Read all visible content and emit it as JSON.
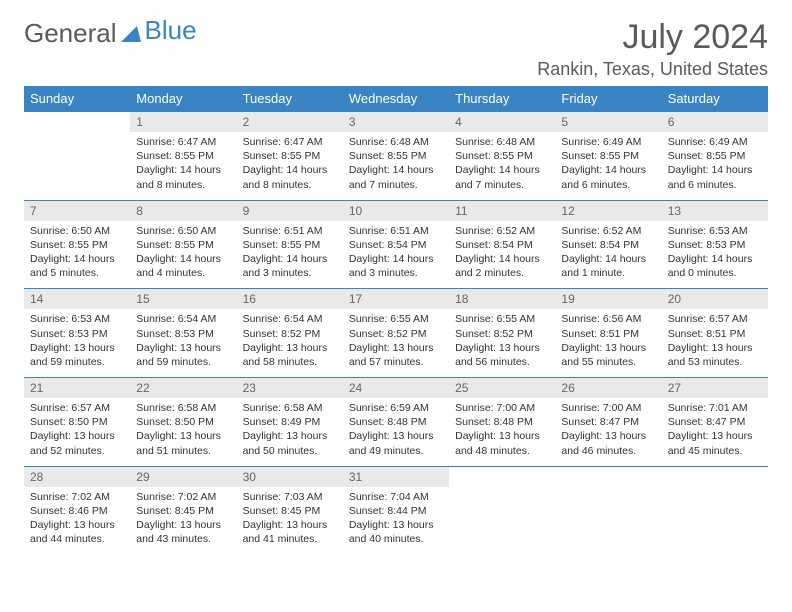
{
  "brand": {
    "part1": "General",
    "part2": "Blue"
  },
  "title": "July 2024",
  "location": "Rankin, Texas, United States",
  "weekdays": [
    "Sunday",
    "Monday",
    "Tuesday",
    "Wednesday",
    "Thursday",
    "Friday",
    "Saturday"
  ],
  "colors": {
    "accent": "#3b84c4",
    "daynum_bg": "#e9e9e9",
    "text": "#333333",
    "muted": "#5a5a5a"
  },
  "fonts": {
    "title_size": 34,
    "location_size": 18,
    "header_size": 13,
    "cell_size": 10.5
  },
  "weeks": [
    [
      {
        "n": "",
        "sr": "",
        "ss": "",
        "dl": ""
      },
      {
        "n": "1",
        "sr": "6:47 AM",
        "ss": "8:55 PM",
        "dl": "14 hours and 8 minutes."
      },
      {
        "n": "2",
        "sr": "6:47 AM",
        "ss": "8:55 PM",
        "dl": "14 hours and 8 minutes."
      },
      {
        "n": "3",
        "sr": "6:48 AM",
        "ss": "8:55 PM",
        "dl": "14 hours and 7 minutes."
      },
      {
        "n": "4",
        "sr": "6:48 AM",
        "ss": "8:55 PM",
        "dl": "14 hours and 7 minutes."
      },
      {
        "n": "5",
        "sr": "6:49 AM",
        "ss": "8:55 PM",
        "dl": "14 hours and 6 minutes."
      },
      {
        "n": "6",
        "sr": "6:49 AM",
        "ss": "8:55 PM",
        "dl": "14 hours and 6 minutes."
      }
    ],
    [
      {
        "n": "7",
        "sr": "6:50 AM",
        "ss": "8:55 PM",
        "dl": "14 hours and 5 minutes."
      },
      {
        "n": "8",
        "sr": "6:50 AM",
        "ss": "8:55 PM",
        "dl": "14 hours and 4 minutes."
      },
      {
        "n": "9",
        "sr": "6:51 AM",
        "ss": "8:55 PM",
        "dl": "14 hours and 3 minutes."
      },
      {
        "n": "10",
        "sr": "6:51 AM",
        "ss": "8:54 PM",
        "dl": "14 hours and 3 minutes."
      },
      {
        "n": "11",
        "sr": "6:52 AM",
        "ss": "8:54 PM",
        "dl": "14 hours and 2 minutes."
      },
      {
        "n": "12",
        "sr": "6:52 AM",
        "ss": "8:54 PM",
        "dl": "14 hours and 1 minute."
      },
      {
        "n": "13",
        "sr": "6:53 AM",
        "ss": "8:53 PM",
        "dl": "14 hours and 0 minutes."
      }
    ],
    [
      {
        "n": "14",
        "sr": "6:53 AM",
        "ss": "8:53 PM",
        "dl": "13 hours and 59 minutes."
      },
      {
        "n": "15",
        "sr": "6:54 AM",
        "ss": "8:53 PM",
        "dl": "13 hours and 59 minutes."
      },
      {
        "n": "16",
        "sr": "6:54 AM",
        "ss": "8:52 PM",
        "dl": "13 hours and 58 minutes."
      },
      {
        "n": "17",
        "sr": "6:55 AM",
        "ss": "8:52 PM",
        "dl": "13 hours and 57 minutes."
      },
      {
        "n": "18",
        "sr": "6:55 AM",
        "ss": "8:52 PM",
        "dl": "13 hours and 56 minutes."
      },
      {
        "n": "19",
        "sr": "6:56 AM",
        "ss": "8:51 PM",
        "dl": "13 hours and 55 minutes."
      },
      {
        "n": "20",
        "sr": "6:57 AM",
        "ss": "8:51 PM",
        "dl": "13 hours and 53 minutes."
      }
    ],
    [
      {
        "n": "21",
        "sr": "6:57 AM",
        "ss": "8:50 PM",
        "dl": "13 hours and 52 minutes."
      },
      {
        "n": "22",
        "sr": "6:58 AM",
        "ss": "8:50 PM",
        "dl": "13 hours and 51 minutes."
      },
      {
        "n": "23",
        "sr": "6:58 AM",
        "ss": "8:49 PM",
        "dl": "13 hours and 50 minutes."
      },
      {
        "n": "24",
        "sr": "6:59 AM",
        "ss": "8:48 PM",
        "dl": "13 hours and 49 minutes."
      },
      {
        "n": "25",
        "sr": "7:00 AM",
        "ss": "8:48 PM",
        "dl": "13 hours and 48 minutes."
      },
      {
        "n": "26",
        "sr": "7:00 AM",
        "ss": "8:47 PM",
        "dl": "13 hours and 46 minutes."
      },
      {
        "n": "27",
        "sr": "7:01 AM",
        "ss": "8:47 PM",
        "dl": "13 hours and 45 minutes."
      }
    ],
    [
      {
        "n": "28",
        "sr": "7:02 AM",
        "ss": "8:46 PM",
        "dl": "13 hours and 44 minutes."
      },
      {
        "n": "29",
        "sr": "7:02 AM",
        "ss": "8:45 PM",
        "dl": "13 hours and 43 minutes."
      },
      {
        "n": "30",
        "sr": "7:03 AM",
        "ss": "8:45 PM",
        "dl": "13 hours and 41 minutes."
      },
      {
        "n": "31",
        "sr": "7:04 AM",
        "ss": "8:44 PM",
        "dl": "13 hours and 40 minutes."
      },
      {
        "n": "",
        "sr": "",
        "ss": "",
        "dl": ""
      },
      {
        "n": "",
        "sr": "",
        "ss": "",
        "dl": ""
      },
      {
        "n": "",
        "sr": "",
        "ss": "",
        "dl": ""
      }
    ]
  ],
  "labels": {
    "sunrise": "Sunrise: ",
    "sunset": "Sunset: ",
    "daylight": "Daylight: "
  }
}
